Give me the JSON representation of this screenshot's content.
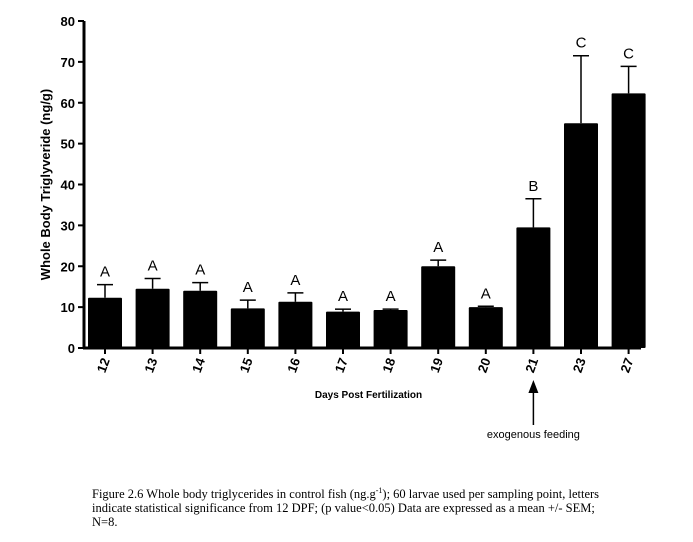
{
  "chart_data": {
    "type": "bar",
    "title": "",
    "xlabel": "Days Post Fertilization",
    "ylabel": "Whole Body Triglyveride (ng/g)",
    "ylim": [
      0,
      80
    ],
    "yticks": [
      0,
      10,
      20,
      30,
      40,
      50,
      60,
      70,
      80
    ],
    "categories": [
      "12",
      "13",
      "14",
      "15",
      "16",
      "17",
      "18",
      "19",
      "20",
      "21",
      "23",
      "27"
    ],
    "values": [
      12.3,
      14.5,
      14.0,
      9.7,
      11.3,
      8.9,
      9.3,
      20.0,
      10.0,
      29.5,
      55.0,
      62.3
    ],
    "errors": [
      3.2,
      2.5,
      2.0,
      2.0,
      2.2,
      0.6,
      0.2,
      1.5,
      0.2,
      7.0,
      16.5,
      6.6
    ],
    "significance_letters": [
      "A",
      "A",
      "A",
      "A",
      "A",
      "A",
      "A",
      "A",
      "A",
      "B",
      "C",
      "C"
    ],
    "annotation": {
      "text": "exogenous feeding",
      "category": "21"
    },
    "bar_color": "#000000"
  },
  "caption": {
    "part1": "Figure 2.6 Whole body triglycerides in control fish (ng.g",
    "sup": "-1",
    "part2": "); 60 larvae used per sampling point, letters indicate statistical significance from 12 DPF; (p value<0.05) Data are expressed as a mean +/- SEM; N=8."
  }
}
